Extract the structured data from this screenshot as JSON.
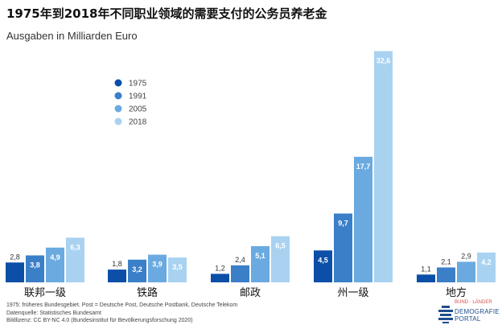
{
  "title": "1975年到2018年不同职业领域的需要支付的公务员养老金",
  "subtitle": "Ausgaben in Milliarden Euro",
  "chart_data": {
    "type": "bar",
    "categories": [
      "联邦一级",
      "铁路",
      "邮政",
      "州一级",
      "地方"
    ],
    "series": [
      {
        "name": "1975",
        "values": [
          2.8,
          1.8,
          1.2,
          4.5,
          1.1
        ],
        "labels": [
          "2,8",
          "1,8",
          "1,2",
          "4,5",
          "1,1"
        ]
      },
      {
        "name": "1991",
        "values": [
          3.8,
          3.2,
          2.4,
          9.7,
          2.1
        ],
        "labels": [
          "3,8",
          "3,2",
          "2,4",
          "9,7",
          "2,1"
        ]
      },
      {
        "name": "2005",
        "values": [
          4.9,
          3.9,
          5.1,
          17.7,
          2.9
        ],
        "labels": [
          "4,9",
          "3,9",
          "5,1",
          "17,7",
          "2,9"
        ]
      },
      {
        "name": "2018",
        "values": [
          6.3,
          3.5,
          6.5,
          32.6,
          4.2
        ],
        "labels": [
          "6,3",
          "3,5",
          "6,5",
          "32,6",
          "4,2"
        ]
      }
    ],
    "ylim": [
      0,
      33
    ],
    "grid": false,
    "legend_position": "top-left",
    "colors": [
      "#0b4fa8",
      "#3b7fc9",
      "#6aaae0",
      "#a9d2f1"
    ]
  },
  "notes": [
    "1975: früheres Bundesgebiet. Post = Deutsche Post, Deutsche Postbank, Deutsche Telekom",
    "Datenquelle: Statistisches Bundesamt",
    "Bildlizenz: CC BY-NC 4.0 (Bundesinstitut für Bevölkerungsforschung 2020)"
  ],
  "logo": {
    "top": "BUND · LÄNDER",
    "line1": "DEMOGRAFIE",
    "line2": "PORTAL"
  }
}
